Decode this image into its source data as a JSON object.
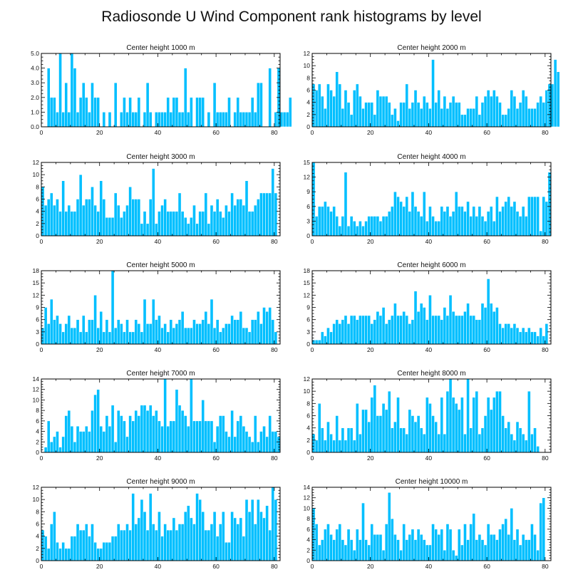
{
  "title": "Radiosonde U Wind Component rank histograms by level",
  "bar_color": "#00bfff",
  "bar_edge_color": "#ffffff",
  "chart_data": [
    {
      "type": "bar",
      "title": "Center height 1000 m",
      "xlim": [
        0,
        82
      ],
      "ylim": [
        0,
        5
      ],
      "xticks": [
        0,
        20,
        40,
        60,
        80
      ],
      "yticks": [
        0,
        1,
        2,
        3,
        4,
        5
      ],
      "ytick_labels": [
        "0.0",
        "1.0",
        "2.0",
        "3.0",
        "4.0",
        "5.0"
      ],
      "values": [
        0,
        0,
        4,
        2,
        2,
        1,
        5,
        1,
        3,
        1,
        5,
        4,
        1,
        2,
        3,
        2,
        1,
        3,
        2,
        2,
        0,
        1,
        0,
        1,
        0,
        3,
        0,
        1,
        2,
        1,
        2,
        1,
        1,
        2,
        0,
        1,
        3,
        1,
        0,
        1,
        1,
        1,
        1,
        2,
        1,
        2,
        2,
        1,
        1,
        4,
        1,
        2,
        0,
        2,
        2,
        2,
        0,
        1,
        0,
        3,
        1,
        1,
        1,
        1,
        2,
        0,
        1,
        2,
        1,
        1,
        1,
        1,
        2,
        1,
        3,
        3,
        0,
        0,
        4,
        0,
        1,
        4,
        1,
        1,
        1,
        2
      ]
    },
    {
      "type": "bar",
      "title": "Center height 2000 m",
      "xlim": [
        0,
        82
      ],
      "ylim": [
        0,
        12
      ],
      "xticks": [
        0,
        20,
        40,
        60,
        80
      ],
      "yticks": [
        0,
        2,
        4,
        6,
        8,
        10,
        12
      ],
      "ytick_labels": [
        "0",
        "2",
        "4",
        "6",
        "8",
        "10",
        "12"
      ],
      "values": [
        7,
        6,
        7,
        5,
        3,
        7,
        6,
        5,
        9,
        7,
        3,
        6,
        4,
        2,
        6,
        7,
        5,
        3,
        4,
        4,
        4,
        2,
        6,
        5,
        5,
        5,
        4,
        2,
        3,
        1,
        4,
        4,
        7,
        3,
        4,
        6,
        4,
        3,
        5,
        4,
        3,
        11,
        4,
        6,
        3,
        5,
        3,
        4,
        5,
        4,
        4,
        2,
        2,
        3,
        3,
        3,
        5,
        2,
        4,
        5,
        6,
        5,
        6,
        5,
        4,
        2,
        2,
        3,
        6,
        5,
        3,
        4,
        6,
        5,
        3,
        3,
        3,
        4,
        5,
        4,
        6,
        7,
        7,
        11,
        9
      ]
    },
    {
      "type": "bar",
      "title": "Center height 3000 m",
      "xlim": [
        0,
        82
      ],
      "ylim": [
        0,
        12
      ],
      "xticks": [
        0,
        20,
        40,
        60,
        80
      ],
      "yticks": [
        0,
        2,
        4,
        6,
        8,
        10,
        12
      ],
      "ytick_labels": [
        "0",
        "2",
        "4",
        "6",
        "8",
        "10",
        "12"
      ],
      "values": [
        8,
        5,
        6,
        7,
        5,
        6,
        4,
        9,
        4,
        5,
        4,
        4,
        6,
        10,
        5,
        6,
        6,
        8,
        5,
        4,
        9,
        6,
        3,
        3,
        3,
        7,
        5,
        3,
        4,
        5,
        8,
        6,
        6,
        6,
        2,
        4,
        2,
        6,
        11,
        2,
        4,
        5,
        6,
        4,
        4,
        4,
        4,
        7,
        4,
        3,
        2,
        3,
        5,
        2,
        4,
        4,
        7,
        2,
        5,
        4,
        6,
        4,
        3,
        5,
        4,
        7,
        5,
        6,
        6,
        5,
        9,
        4,
        4,
        5,
        6,
        7,
        7,
        7,
        7,
        11,
        7
      ]
    },
    {
      "type": "bar",
      "title": "Center height 4000 m",
      "xlim": [
        0,
        82
      ],
      "ylim": [
        0,
        15
      ],
      "xticks": [
        0,
        20,
        40,
        60,
        80
      ],
      "yticks": [
        0,
        3,
        6,
        9,
        12,
        15
      ],
      "ytick_labels": [
        "0",
        "3",
        "6",
        "9",
        "12",
        "15"
      ],
      "values": [
        15,
        4,
        6,
        6,
        7,
        6,
        5,
        6,
        4,
        2,
        4,
        13,
        2,
        4,
        3,
        2,
        3,
        2,
        3,
        4,
        4,
        4,
        4,
        3,
        4,
        4,
        5,
        6,
        9,
        8,
        7,
        6,
        8,
        5,
        9,
        6,
        5,
        4,
        9,
        3,
        6,
        4,
        3,
        3,
        6,
        5,
        6,
        4,
        5,
        9,
        6,
        6,
        5,
        7,
        4,
        6,
        4,
        6,
        4,
        3,
        5,
        6,
        3,
        8,
        5,
        6,
        7,
        8,
        6,
        7,
        5,
        4,
        6,
        4,
        8,
        8,
        8,
        8,
        1,
        8,
        7,
        13
      ]
    },
    {
      "type": "bar",
      "title": "Center height 5000 m",
      "xlim": [
        0,
        82
      ],
      "ylim": [
        0,
        18
      ],
      "xticks": [
        0,
        20,
        40,
        60,
        80
      ],
      "yticks": [
        0,
        3,
        6,
        9,
        12,
        15,
        18
      ],
      "ytick_labels": [
        "0",
        "3",
        "6",
        "9",
        "12",
        "15",
        "18"
      ],
      "values": [
        4,
        9,
        5,
        11,
        6,
        7,
        5,
        3,
        5,
        7,
        4,
        4,
        6,
        3,
        7,
        3,
        6,
        6,
        12,
        4,
        8,
        3,
        6,
        3,
        18,
        4,
        6,
        5,
        3,
        6,
        3,
        3,
        6,
        5,
        3,
        11,
        5,
        5,
        11,
        6,
        7,
        4,
        5,
        3,
        6,
        4,
        5,
        6,
        8,
        4,
        4,
        4,
        6,
        5,
        5,
        6,
        8,
        5,
        11,
        4,
        6,
        3,
        4,
        5,
        5,
        7,
        6,
        6,
        8,
        4,
        4,
        3,
        6,
        6,
        8,
        5,
        9,
        8,
        9,
        6,
        3
      ]
    },
    {
      "type": "bar",
      "title": "Center height 6000 m",
      "xlim": [
        0,
        82
      ],
      "ylim": [
        0,
        18
      ],
      "xticks": [
        0,
        20,
        40,
        60,
        80
      ],
      "yticks": [
        0,
        3,
        6,
        9,
        12,
        15,
        18
      ],
      "ytick_labels": [
        "0",
        "3",
        "6",
        "9",
        "12",
        "15",
        "18"
      ],
      "values": [
        1,
        1,
        1,
        3,
        2,
        4,
        3,
        5,
        6,
        5,
        6,
        7,
        5,
        7,
        7,
        6,
        7,
        7,
        7,
        7,
        5,
        6,
        8,
        7,
        9,
        5,
        6,
        7,
        10,
        7,
        7,
        8,
        7,
        5,
        6,
        13,
        8,
        10,
        9,
        6,
        12,
        7,
        7,
        7,
        6,
        9,
        7,
        12,
        8,
        7,
        7,
        7,
        8,
        10,
        7,
        7,
        6,
        6,
        10,
        9,
        16,
        10,
        8,
        9,
        5,
        4,
        5,
        5,
        4,
        5,
        4,
        3,
        4,
        3,
        4,
        3,
        3,
        2,
        4,
        2,
        5
      ]
    },
    {
      "type": "bar",
      "title": "Center height 7000 m",
      "xlim": [
        0,
        82
      ],
      "ylim": [
        0,
        14
      ],
      "xticks": [
        0,
        20,
        40,
        60,
        80
      ],
      "yticks": [
        0,
        2,
        4,
        6,
        8,
        10,
        12,
        14
      ],
      "ytick_labels": [
        "0",
        "2",
        "4",
        "6",
        "8",
        "10",
        "12",
        "14"
      ],
      "values": [
        0,
        1,
        6,
        2,
        3,
        4,
        1,
        3,
        7,
        8,
        5,
        2,
        5,
        4,
        4,
        5,
        4,
        8,
        11,
        12,
        5,
        4,
        7,
        5,
        9,
        2,
        8,
        7,
        6,
        3,
        7,
        6,
        8,
        7,
        9,
        9,
        8,
        9,
        7,
        8,
        6,
        5,
        14,
        5,
        6,
        6,
        12,
        9,
        8,
        7,
        5,
        14,
        6,
        6,
        6,
        10,
        6,
        6,
        6,
        2,
        5,
        7,
        7,
        4,
        3,
        8,
        3,
        6,
        7,
        5,
        4,
        3,
        2,
        7,
        2,
        4,
        5,
        3,
        7,
        4,
        4,
        3
      ]
    },
    {
      "type": "bar",
      "title": "Center height 8000 m",
      "xlim": [
        0,
        82
      ],
      "ylim": [
        0,
        12
      ],
      "xticks": [
        0,
        20,
        40,
        60,
        80
      ],
      "yticks": [
        0,
        2,
        4,
        6,
        8,
        10,
        12
      ],
      "ytick_labels": [
        "0",
        "2",
        "4",
        "6",
        "8",
        "10",
        "12"
      ],
      "values": [
        3,
        2,
        8,
        4,
        2,
        5,
        3,
        2,
        6,
        2,
        4,
        2,
        4,
        4,
        2,
        8,
        3,
        7,
        7,
        5,
        9,
        11,
        6,
        6,
        8,
        7,
        10,
        4,
        5,
        9,
        4,
        4,
        3,
        7,
        6,
        5,
        6,
        4,
        3,
        9,
        8,
        6,
        5,
        3,
        9,
        3,
        10,
        12,
        9,
        8,
        7,
        9,
        3,
        12,
        4,
        9,
        10,
        3,
        4,
        6,
        9,
        7,
        9,
        10,
        10,
        6,
        4,
        5,
        3,
        2,
        5,
        4,
        3,
        2,
        10,
        3,
        4,
        1
      ]
    },
    {
      "type": "bar",
      "title": "Center height 9000 m",
      "xlim": [
        0,
        82
      ],
      "ylim": [
        0,
        12
      ],
      "xticks": [
        0,
        20,
        40,
        60,
        80
      ],
      "yticks": [
        0,
        2,
        4,
        6,
        8,
        10,
        12
      ],
      "ytick_labels": [
        "0",
        "2",
        "4",
        "6",
        "8",
        "10",
        "12"
      ],
      "values": [
        5,
        4,
        2,
        6,
        8,
        3,
        2,
        3,
        2,
        2,
        4,
        4,
        6,
        5,
        5,
        6,
        4,
        6,
        3,
        2,
        2,
        3,
        3,
        3,
        4,
        4,
        6,
        5,
        5,
        6,
        5,
        11,
        6,
        7,
        10,
        8,
        5,
        11,
        6,
        5,
        8,
        4,
        6,
        5,
        5,
        7,
        5,
        6,
        6,
        8,
        9,
        7,
        6,
        11,
        10,
        8,
        5,
        5,
        6,
        8,
        4,
        6,
        8,
        3,
        3,
        8,
        7,
        6,
        7,
        4,
        10,
        8,
        10,
        6,
        10,
        8,
        7,
        9,
        5,
        12,
        10
      ]
    },
    {
      "type": "bar",
      "title": "Center height 10000 m",
      "xlim": [
        0,
        82
      ],
      "ylim": [
        0,
        14
      ],
      "xticks": [
        0,
        20,
        40,
        60,
        80
      ],
      "yticks": [
        0,
        2,
        4,
        6,
        8,
        10,
        12,
        14
      ],
      "ytick_labels": [
        "0",
        "2",
        "4",
        "6",
        "8",
        "10",
        "12",
        "14"
      ],
      "values": [
        10,
        7,
        3,
        4,
        6,
        7,
        5,
        4,
        6,
        7,
        4,
        3,
        6,
        4,
        2,
        6,
        4,
        11,
        4,
        3,
        7,
        5,
        5,
        5,
        2,
        7,
        13,
        8,
        5,
        4,
        2,
        7,
        4,
        5,
        6,
        4,
        6,
        5,
        4,
        3,
        3,
        7,
        6,
        5,
        6,
        2,
        7,
        6,
        2,
        1,
        6,
        3,
        7,
        4,
        7,
        9,
        4,
        5,
        4,
        3,
        7,
        5,
        5,
        4,
        6,
        7,
        8,
        5,
        10,
        4,
        6,
        3,
        5,
        4,
        4,
        7,
        5,
        2,
        11,
        12
      ]
    }
  ]
}
